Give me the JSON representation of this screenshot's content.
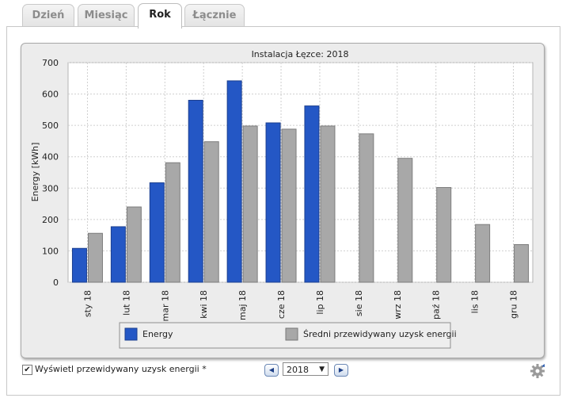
{
  "tabs": [
    {
      "label": "Dzień",
      "active": false
    },
    {
      "label": "Miesiąc",
      "active": false
    },
    {
      "label": "Rok",
      "active": true
    },
    {
      "label": "Łącznie",
      "active": false
    }
  ],
  "chart_data": {
    "type": "bar",
    "title": "Instalacja Łęzce: 2018",
    "ylabel": "Energy [kWh]",
    "xlabel": "",
    "ylim": [
      0,
      700
    ],
    "yticks": [
      0,
      100,
      200,
      300,
      400,
      500,
      600,
      700
    ],
    "categories": [
      "sty 18",
      "lut 18",
      "mar 18",
      "kwi 18",
      "maj 18",
      "cze 18",
      "lip 18",
      "sie 18",
      "wrz 18",
      "paź 18",
      "lis 18",
      "gru 18"
    ],
    "series": [
      {
        "name": "Energy",
        "color": "#2457c5",
        "values": [
          108,
          177,
          317,
          580,
          642,
          508,
          562,
          null,
          null,
          null,
          null,
          null
        ]
      },
      {
        "name": "Średni przewidywany uzysk energii",
        "color": "#a8a8a8",
        "values": [
          156,
          240,
          381,
          448,
          498,
          488,
          498,
          473,
          395,
          302,
          184,
          120
        ]
      }
    ],
    "grid": true,
    "legend_position": "bottom"
  },
  "controls": {
    "show_forecast_label": "Wyświetl przewidywany uzysk energii *",
    "show_forecast_checked": true,
    "year_value": "2018",
    "prev_icon": "triangle-left-icon",
    "next_icon": "triangle-right-icon",
    "settings_icon": "gear-icon"
  }
}
